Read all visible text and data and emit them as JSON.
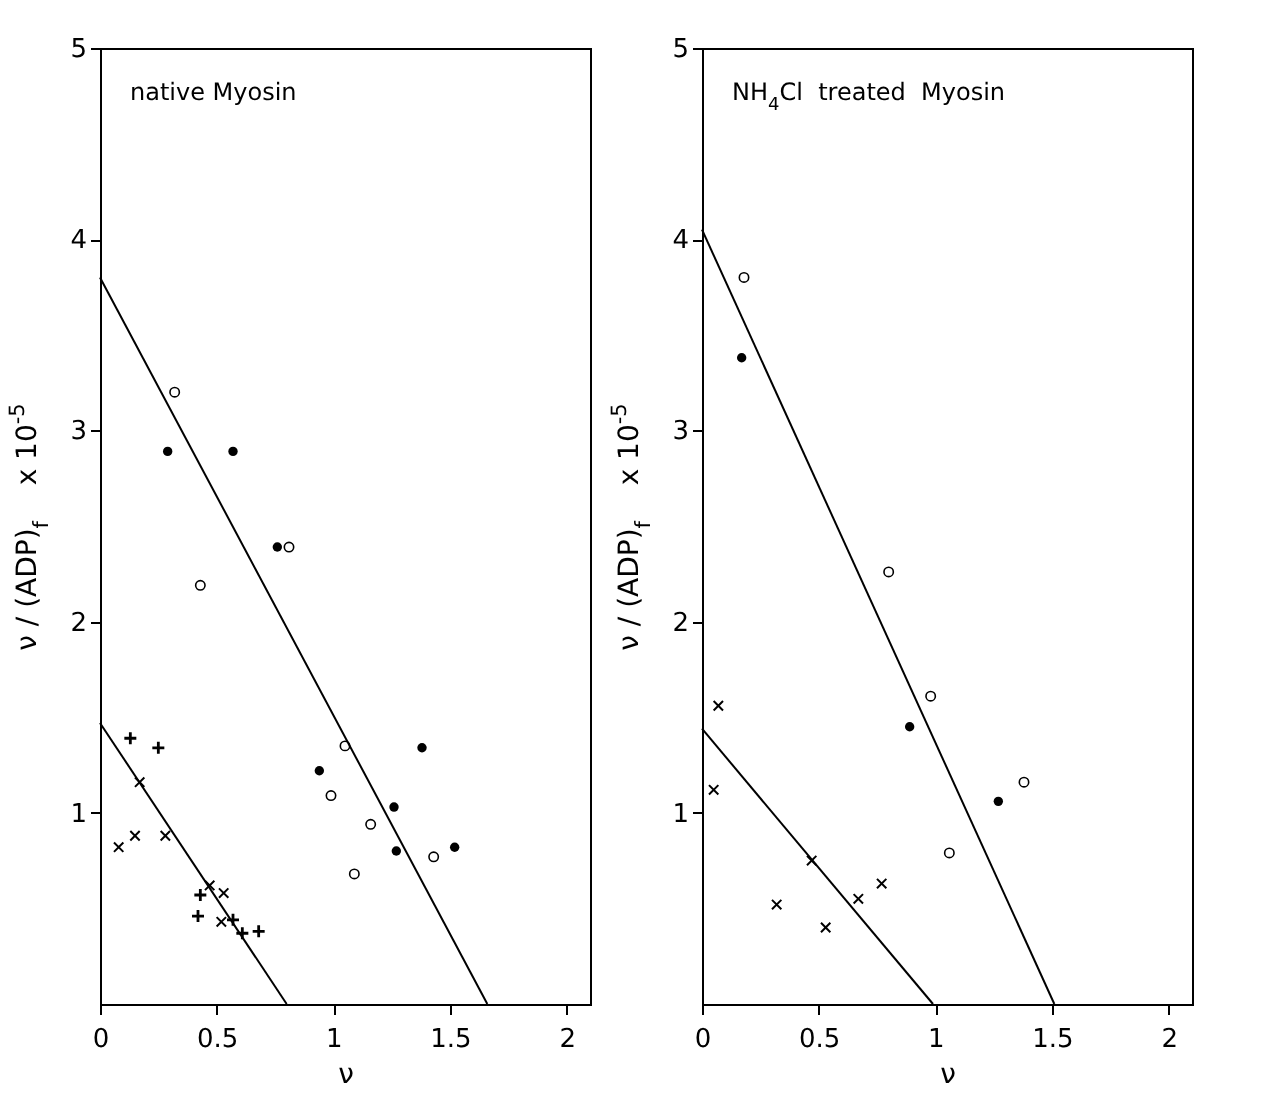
{
  "chart_data": [
    {
      "type": "scatter",
      "annotations": [
        "native  Myosin"
      ],
      "xlabel": "ν",
      "ylabel": "ν / (ADP)$_{f}$    x 10$^{-5}$",
      "xlim": [
        0,
        2.1
      ],
      "ylim": [
        0,
        5
      ],
      "xticks": [
        0,
        0.5,
        1,
        1.5,
        2
      ],
      "yticks": [
        1,
        2,
        3,
        4,
        5
      ],
      "series": [
        {
          "marker": "circle-open",
          "color": "#000000",
          "x": [
            0.32,
            0.81,
            0.43,
            1.05,
            0.99,
            1.16,
            1.09,
            1.43
          ],
          "values": [
            3.2,
            2.39,
            2.19,
            1.35,
            1.09,
            0.94,
            0.68,
            0.77
          ]
        },
        {
          "marker": "circle",
          "color": "#000000",
          "x": [
            0.29,
            0.57,
            0.76,
            0.94,
            1.38,
            1.26,
            1.27,
            1.52
          ],
          "values": [
            2.89,
            2.89,
            2.39,
            1.22,
            1.34,
            1.03,
            0.8,
            0.82
          ]
        },
        {
          "marker": "cross",
          "color": "#000000",
          "x": [
            0.13,
            0.25,
            0.43,
            0.42,
            0.57,
            0.61,
            0.68
          ],
          "values": [
            1.39,
            1.34,
            0.57,
            0.46,
            0.44,
            0.37,
            0.38
          ]
        },
        {
          "marker": "x",
          "color": "#000000",
          "x": [
            0.17,
            0.08,
            0.15,
            0.28,
            0.47,
            0.53,
            0.52
          ],
          "values": [
            1.16,
            0.82,
            0.88,
            0.88,
            0.62,
            0.58,
            0.43
          ]
        },
        {
          "type": "line",
          "color": "#000000",
          "x": [
            0,
            1.66
          ],
          "values": [
            3.8,
            0
          ]
        },
        {
          "type": "line",
          "color": "#000000",
          "x": [
            0,
            0.8
          ],
          "values": [
            1.47,
            0
          ]
        }
      ]
    },
    {
      "type": "scatter",
      "annotations": [
        "NH$_{4}$Cl  treated  Myosin"
      ],
      "xlabel": "ν",
      "ylabel": "ν / (ADP)$_{f}$    x 10$^{-5}$",
      "xlim": [
        0,
        2.1
      ],
      "ylim": [
        0,
        5
      ],
      "xticks": [
        0,
        0.5,
        1,
        1.5,
        2
      ],
      "yticks": [
        1,
        2,
        3,
        4,
        5
      ],
      "series": [
        {
          "marker": "circle-open",
          "color": "#000000",
          "x": [
            0.18,
            0.8,
            0.98,
            1.38,
            1.06
          ],
          "values": [
            3.8,
            2.26,
            1.61,
            1.16,
            0.79
          ]
        },
        {
          "marker": "circle",
          "color": "#000000",
          "x": [
            0.17,
            0.89,
            1.27
          ],
          "values": [
            3.38,
            1.45,
            1.06
          ]
        },
        {
          "marker": "x",
          "color": "#000000",
          "x": [
            0.07,
            0.05,
            0.47,
            0.77,
            0.67,
            0.32,
            0.53
          ],
          "values": [
            1.56,
            1.12,
            0.75,
            0.63,
            0.55,
            0.52,
            0.4
          ]
        },
        {
          "type": "line",
          "color": "#000000",
          "x": [
            0,
            1.51
          ],
          "values": [
            4.05,
            0
          ]
        },
        {
          "type": "line",
          "color": "#000000",
          "x": [
            0,
            0.99
          ],
          "values": [
            1.44,
            0
          ]
        }
      ]
    }
  ]
}
